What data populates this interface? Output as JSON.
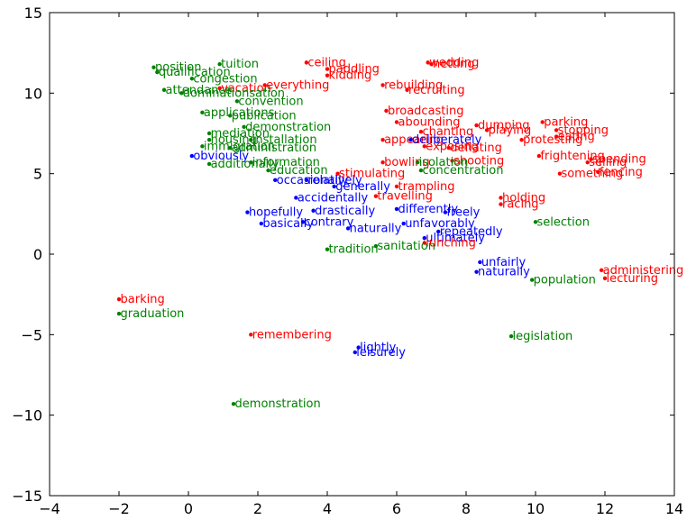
{
  "chart_data": {
    "type": "scatter",
    "title": "",
    "xlabel": "",
    "ylabel": "",
    "xlim": [
      -4,
      14
    ],
    "ylim": [
      -15,
      15
    ],
    "xticks": [
      -4,
      -2,
      0,
      2,
      4,
      6,
      8,
      10,
      12,
      14
    ],
    "yticks": [
      -15,
      -10,
      -5,
      0,
      5,
      10,
      15
    ],
    "xtick_labels": [
      "−4",
      "−2",
      "0",
      "2",
      "4",
      "6",
      "8",
      "10",
      "12",
      "14"
    ],
    "ytick_labels": [
      "−15",
      "−10",
      "−5",
      "0",
      "5",
      "10",
      "15"
    ],
    "grid": false,
    "colors": {
      "red": "#ff0000",
      "green": "#008000",
      "blue": "#0000ff"
    },
    "points": [
      {
        "x": -1.0,
        "y": 11.6,
        "label": "position",
        "color": "green"
      },
      {
        "x": -0.9,
        "y": 11.3,
        "label": "qualification",
        "color": "green"
      },
      {
        "x": 0.9,
        "y": 11.8,
        "label": "tuition",
        "color": "green"
      },
      {
        "x": 0.1,
        "y": 10.9,
        "label": "congestion",
        "color": "green"
      },
      {
        "x": -0.7,
        "y": 10.2,
        "label": "attendance",
        "color": "green"
      },
      {
        "x": 0.9,
        "y": 10.3,
        "label": "vacation",
        "color": "red"
      },
      {
        "x": 2.2,
        "y": 10.5,
        "label": "everything",
        "color": "red"
      },
      {
        "x": -0.2,
        "y": 10.0,
        "label": "dominationsation",
        "color": "green"
      },
      {
        "x": 3.4,
        "y": 11.9,
        "label": "ceiling",
        "color": "red"
      },
      {
        "x": 4.0,
        "y": 11.5,
        "label": "paddling",
        "color": "red"
      },
      {
        "x": 4.0,
        "y": 11.1,
        "label": "kidding",
        "color": "red"
      },
      {
        "x": 6.9,
        "y": 11.9,
        "label": "wedding",
        "color": "red"
      },
      {
        "x": 7.0,
        "y": 11.8,
        "label": "netting",
        "color": "red"
      },
      {
        "x": 5.6,
        "y": 10.5,
        "label": "rebuilding",
        "color": "red"
      },
      {
        "x": 6.3,
        "y": 10.2,
        "label": "recruiting",
        "color": "red"
      },
      {
        "x": 1.4,
        "y": 9.5,
        "label": "convention",
        "color": "green"
      },
      {
        "x": 0.4,
        "y": 8.8,
        "label": "applications",
        "color": "green"
      },
      {
        "x": 1.2,
        "y": 8.6,
        "label": "publication",
        "color": "green"
      },
      {
        "x": 1.6,
        "y": 7.9,
        "label": "demonstration",
        "color": "green"
      },
      {
        "x": 0.6,
        "y": 7.5,
        "label": "mediation",
        "color": "green"
      },
      {
        "x": 0.6,
        "y": 7.1,
        "label": "housing",
        "color": "green"
      },
      {
        "x": 1.8,
        "y": 7.1,
        "label": "installation",
        "color": "green"
      },
      {
        "x": 0.4,
        "y": 6.7,
        "label": "immigration",
        "color": "green"
      },
      {
        "x": 1.2,
        "y": 6.6,
        "label": "administration",
        "color": "green"
      },
      {
        "x": 0.1,
        "y": 6.1,
        "label": "obviously",
        "color": "blue"
      },
      {
        "x": 1.8,
        "y": 5.7,
        "label": "information",
        "color": "green"
      },
      {
        "x": 0.6,
        "y": 5.6,
        "label": "additionally",
        "color": "green"
      },
      {
        "x": 2.3,
        "y": 5.2,
        "label": "education",
        "color": "green"
      },
      {
        "x": 5.7,
        "y": 8.9,
        "label": "broadcasting",
        "color": "red"
      },
      {
        "x": 6.0,
        "y": 8.2,
        "label": "abounding",
        "color": "red"
      },
      {
        "x": 6.7,
        "y": 7.6,
        "label": "chanting",
        "color": "red"
      },
      {
        "x": 5.6,
        "y": 7.1,
        "label": "appearing",
        "color": "red"
      },
      {
        "x": 6.4,
        "y": 7.1,
        "label": "deliberately",
        "color": "blue"
      },
      {
        "x": 6.8,
        "y": 6.7,
        "label": "exposing",
        "color": "red"
      },
      {
        "x": 7.5,
        "y": 6.6,
        "label": "deflating",
        "color": "red"
      },
      {
        "x": 8.3,
        "y": 8.0,
        "label": "dumping",
        "color": "red"
      },
      {
        "x": 8.6,
        "y": 7.7,
        "label": "playing",
        "color": "red"
      },
      {
        "x": 10.2,
        "y": 8.2,
        "label": "parking",
        "color": "red"
      },
      {
        "x": 10.6,
        "y": 7.7,
        "label": "stopping",
        "color": "red"
      },
      {
        "x": 9.6,
        "y": 7.1,
        "label": "protesting",
        "color": "red"
      },
      {
        "x": 10.6,
        "y": 7.3,
        "label": "eating",
        "color": "red"
      },
      {
        "x": 10.1,
        "y": 6.1,
        "label": "frightening",
        "color": "red"
      },
      {
        "x": 11.6,
        "y": 5.9,
        "label": "spending",
        "color": "red"
      },
      {
        "x": 11.5,
        "y": 5.7,
        "label": "selling",
        "color": "red"
      },
      {
        "x": 10.7,
        "y": 5.0,
        "label": "something",
        "color": "red"
      },
      {
        "x": 11.8,
        "y": 5.1,
        "label": "fencing",
        "color": "red"
      },
      {
        "x": 7.6,
        "y": 5.8,
        "label": "shooting",
        "color": "red"
      },
      {
        "x": 5.6,
        "y": 5.7,
        "label": "bowling",
        "color": "red"
      },
      {
        "x": 6.6,
        "y": 5.7,
        "label": "isolation",
        "color": "green"
      },
      {
        "x": 6.7,
        "y": 5.2,
        "label": "concentration",
        "color": "green"
      },
      {
        "x": 4.3,
        "y": 5.0,
        "label": "stimulating",
        "color": "red"
      },
      {
        "x": 2.5,
        "y": 4.6,
        "label": "occasionally",
        "color": "blue"
      },
      {
        "x": 3.4,
        "y": 4.6,
        "label": "relatively",
        "color": "blue"
      },
      {
        "x": 4.2,
        "y": 4.2,
        "label": "generally",
        "color": "blue"
      },
      {
        "x": 6.0,
        "y": 4.2,
        "label": "trampling",
        "color": "red"
      },
      {
        "x": 3.1,
        "y": 3.5,
        "label": "accidentally",
        "color": "blue"
      },
      {
        "x": 5.4,
        "y": 3.6,
        "label": "travelling",
        "color": "red"
      },
      {
        "x": 9.0,
        "y": 3.5,
        "label": "holding",
        "color": "red"
      },
      {
        "x": 9.0,
        "y": 3.1,
        "label": "racing",
        "color": "red"
      },
      {
        "x": 1.7,
        "y": 2.6,
        "label": "hopefully",
        "color": "blue"
      },
      {
        "x": 3.6,
        "y": 2.7,
        "label": "drastically",
        "color": "blue"
      },
      {
        "x": 6.0,
        "y": 2.8,
        "label": "differently",
        "color": "blue"
      },
      {
        "x": 7.4,
        "y": 2.6,
        "label": "freely",
        "color": "blue"
      },
      {
        "x": 2.1,
        "y": 1.9,
        "label": "basically",
        "color": "blue"
      },
      {
        "x": 3.3,
        "y": 2.0,
        "label": "contrary",
        "color": "blue"
      },
      {
        "x": 4.6,
        "y": 1.6,
        "label": "naturally",
        "color": "blue"
      },
      {
        "x": 6.2,
        "y": 1.9,
        "label": "unfavorably",
        "color": "blue"
      },
      {
        "x": 7.2,
        "y": 1.4,
        "label": "repeatedly",
        "color": "blue"
      },
      {
        "x": 6.8,
        "y": 1.0,
        "label": "ultimately",
        "color": "blue"
      },
      {
        "x": 6.8,
        "y": 0.7,
        "label": "lunching",
        "color": "red"
      },
      {
        "x": 10.0,
        "y": 2.0,
        "label": "selection",
        "color": "green"
      },
      {
        "x": 4.0,
        "y": 0.3,
        "label": "tradition",
        "color": "green"
      },
      {
        "x": 5.4,
        "y": 0.5,
        "label": "sanitation",
        "color": "green"
      },
      {
        "x": 8.4,
        "y": -0.5,
        "label": "unfairly",
        "color": "blue"
      },
      {
        "x": 8.3,
        "y": -1.1,
        "label": "naturally",
        "color": "blue"
      },
      {
        "x": 9.9,
        "y": -1.6,
        "label": "population",
        "color": "green"
      },
      {
        "x": 11.9,
        "y": -1.0,
        "label": "administering",
        "color": "red"
      },
      {
        "x": 12.0,
        "y": -1.5,
        "label": "lecturing",
        "color": "red"
      },
      {
        "x": -2.0,
        "y": -2.8,
        "label": "barking",
        "color": "red"
      },
      {
        "x": -2.0,
        "y": -3.7,
        "label": "graduation",
        "color": "green"
      },
      {
        "x": 1.8,
        "y": -5.0,
        "label": "remembering",
        "color": "red"
      },
      {
        "x": 9.3,
        "y": -5.1,
        "label": "legislation",
        "color": "green"
      },
      {
        "x": 4.9,
        "y": -5.8,
        "label": "lightly",
        "color": "blue"
      },
      {
        "x": 4.8,
        "y": -6.1,
        "label": "leisurely",
        "color": "blue"
      },
      {
        "x": 1.3,
        "y": -9.3,
        "label": "demonstration",
        "color": "green"
      }
    ]
  }
}
